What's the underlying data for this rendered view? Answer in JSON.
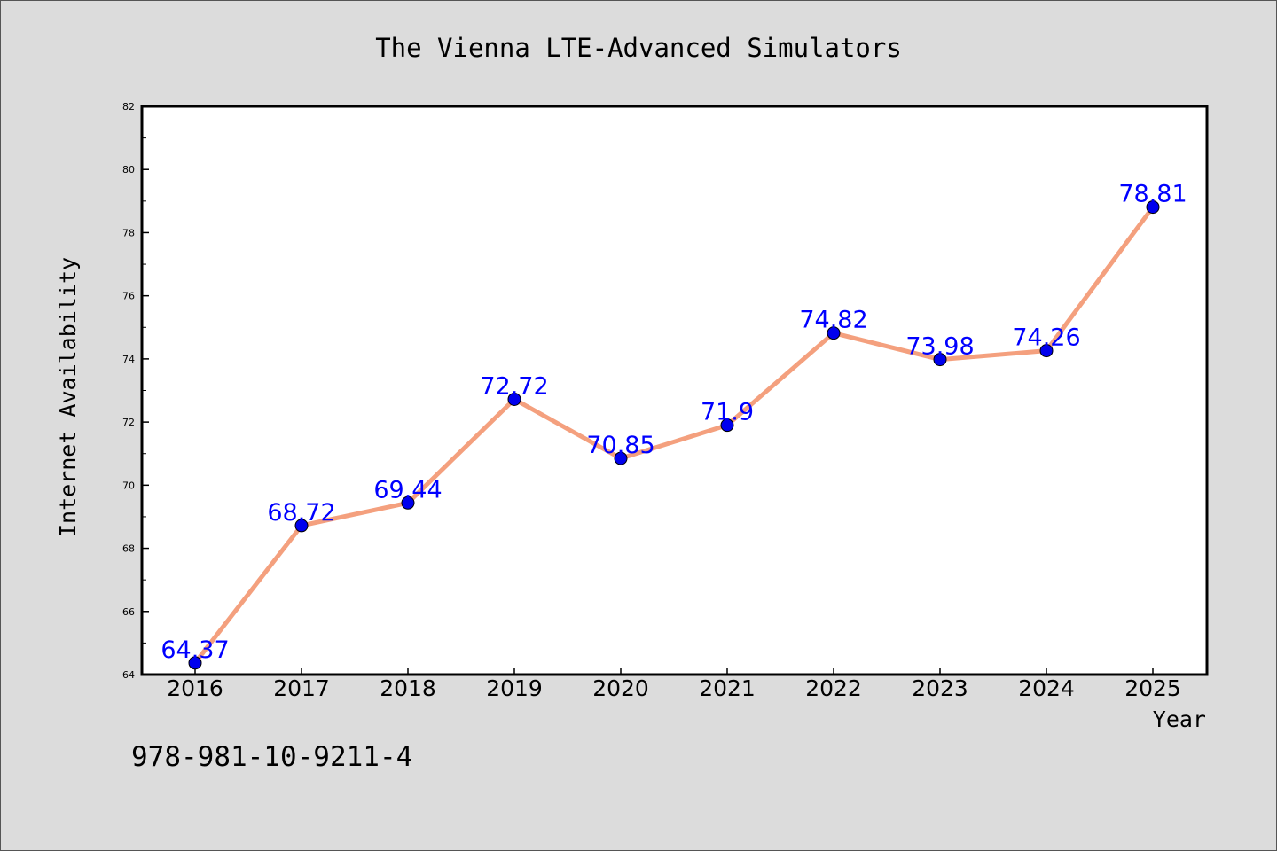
{
  "chart_data": {
    "type": "line",
    "title": "The Vienna LTE-Advanced Simulators",
    "xlabel": "Year",
    "ylabel": "Internet Availability",
    "categories": [
      "2016",
      "2017",
      "2018",
      "2019",
      "2020",
      "2021",
      "2022",
      "2023",
      "2024",
      "2025"
    ],
    "series": [
      {
        "values": [
          64.37,
          68.72,
          69.44,
          72.72,
          70.85,
          71.9,
          74.82,
          73.98,
          74.26,
          78.81
        ],
        "labels": [
          "64.37",
          "68.72",
          "69.44",
          "72.72",
          "70.85",
          "71.9",
          "74.82",
          "73.98",
          "74.26",
          "78.81"
        ]
      }
    ],
    "ylim": [
      64,
      82
    ],
    "yticks": [
      "64",
      "66",
      "68",
      "70",
      "72",
      "74",
      "76",
      "78",
      "80",
      "82"
    ],
    "grid": false,
    "colors": {
      "line": "#f4a07e",
      "marker": "#0000ee",
      "data_label": "#0000ff",
      "plot_background": "#ffffff",
      "figure_background": "#dcdcdc"
    }
  },
  "footer_text": "978-981-10-9211-4"
}
